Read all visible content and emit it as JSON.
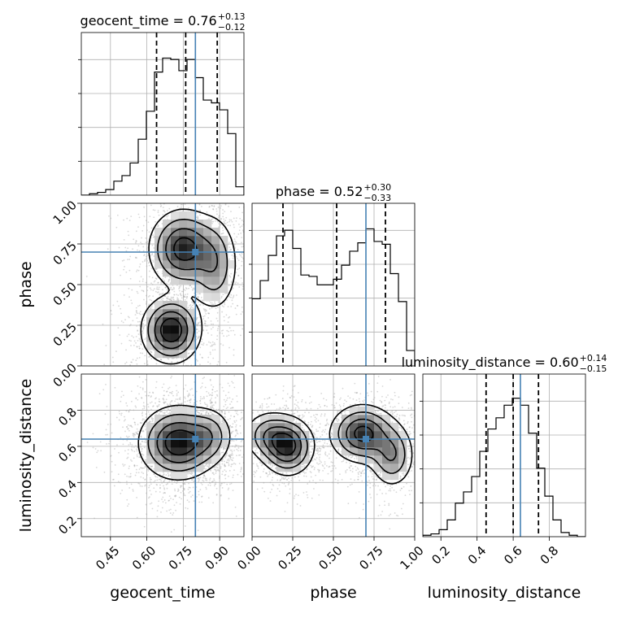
{
  "colors": {
    "truth": "#4682b4",
    "hist": "#000000",
    "grid": "#b0b0b0",
    "quantile": "#000000",
    "samples": "#a9a9a9"
  },
  "chart_data": {
    "type": "corner",
    "parameters": [
      "geocent_time",
      "phase",
      "luminosity_distance"
    ],
    "titles": [
      {
        "param": "geocent_time",
        "label": "geocent_time = 0.76",
        "median": 0.76,
        "plus": "+0.13",
        "minus": "−0.12"
      },
      {
        "param": "phase",
        "label": "phase = 0.52",
        "median": 0.52,
        "plus": "+0.30",
        "minus": "−0.33"
      },
      {
        "param": "luminosity_distance",
        "label": "luminosity_distance = 0.60",
        "median": 0.6,
        "plus": "+0.14",
        "minus": "−0.15"
      }
    ],
    "truths": {
      "geocent_time": 0.8,
      "phase": 0.7,
      "luminosity_distance": 0.64
    },
    "quantiles": {
      "geocent_time": [
        0.64,
        0.76,
        0.89
      ],
      "phase": [
        0.19,
        0.52,
        0.82
      ],
      "luminosity_distance": [
        0.45,
        0.6,
        0.74
      ]
    },
    "ranges": {
      "geocent_time": [
        0.33,
        1.0
      ],
      "phase": [
        0.0,
        1.0
      ],
      "luminosity_distance": [
        0.1,
        1.0
      ]
    },
    "ticks": {
      "geocent_time": {
        "values": [
          0.45,
          0.6,
          0.75,
          0.9
        ],
        "labels": [
          "0.45",
          "0.60",
          "0.75",
          "0.90"
        ]
      },
      "phase": {
        "values": [
          0.0,
          0.25,
          0.5,
          0.75,
          1.0
        ],
        "labels": [
          "0.00",
          "0.25",
          "0.50",
          "0.75",
          "1.00"
        ]
      },
      "luminosity_distance": {
        "values": [
          0.2,
          0.4,
          0.6,
          0.8
        ],
        "labels": [
          "0.2",
          "0.4",
          "0.6",
          "0.8"
        ]
      }
    },
    "marginals": {
      "geocent_time": {
        "edges_start": 0.33,
        "bin_width": 0.0335,
        "values": [
          0.0,
          0.01,
          0.02,
          0.04,
          0.1,
          0.14,
          0.23,
          0.4,
          0.6,
          0.88,
          0.98,
          0.97,
          0.89,
          0.97,
          0.84,
          0.68,
          0.66,
          0.61,
          0.44,
          0.06
        ]
      },
      "phase": {
        "edges_start": 0.0,
        "bin_width": 0.05,
        "values": [
          0.48,
          0.61,
          0.79,
          0.93,
          0.97,
          0.84,
          0.65,
          0.64,
          0.58,
          0.58,
          0.62,
          0.72,
          0.82,
          0.88,
          0.98,
          0.89,
          0.87,
          0.66,
          0.46,
          0.11
        ]
      },
      "luminosity_distance": {
        "edges_start": 0.1,
        "bin_width": 0.045,
        "values": [
          0.01,
          0.02,
          0.05,
          0.12,
          0.24,
          0.32,
          0.43,
          0.61,
          0.77,
          0.85,
          0.94,
          0.99,
          0.94,
          0.74,
          0.49,
          0.29,
          0.12,
          0.03,
          0.01,
          0.0
        ]
      }
    },
    "densities": [
      {
        "x": "geocent_time",
        "y": "phase",
        "peaks": [
          {
            "cx": 0.7,
            "cy": 0.22,
            "sx": 0.06,
            "sy": 0.1,
            "w": 1.0
          },
          {
            "cx": 0.75,
            "cy": 0.72,
            "sx": 0.07,
            "sy": 0.12,
            "w": 0.9
          },
          {
            "cx": 0.88,
            "cy": 0.62,
            "sx": 0.05,
            "sy": 0.15,
            "w": 0.45
          }
        ],
        "truth": [
          0.8,
          0.7
        ]
      },
      {
        "x": "geocent_time",
        "y": "luminosity_distance",
        "peaks": [
          {
            "cx": 0.73,
            "cy": 0.62,
            "sx": 0.08,
            "sy": 0.1,
            "w": 1.0
          },
          {
            "cx": 0.86,
            "cy": 0.66,
            "sx": 0.05,
            "sy": 0.08,
            "w": 0.35
          }
        ],
        "truth": [
          0.8,
          0.64
        ]
      },
      {
        "x": "phase",
        "y": "luminosity_distance",
        "peaks": [
          {
            "cx": 0.22,
            "cy": 0.6,
            "sx": 0.08,
            "sy": 0.08,
            "w": 1.0
          },
          {
            "cx": 0.1,
            "cy": 0.66,
            "sx": 0.08,
            "sy": 0.07,
            "w": 0.5
          },
          {
            "cx": 0.68,
            "cy": 0.67,
            "sx": 0.1,
            "sy": 0.08,
            "w": 1.0
          },
          {
            "cx": 0.86,
            "cy": 0.55,
            "sx": 0.07,
            "sy": 0.09,
            "w": 0.6
          }
        ],
        "truth": [
          0.7,
          0.64
        ]
      }
    ],
    "xlabels": [
      "geocent_time",
      "phase",
      "luminosity_distance"
    ],
    "ylabels": [
      "",
      "phase",
      "luminosity_distance"
    ],
    "grid": true
  }
}
